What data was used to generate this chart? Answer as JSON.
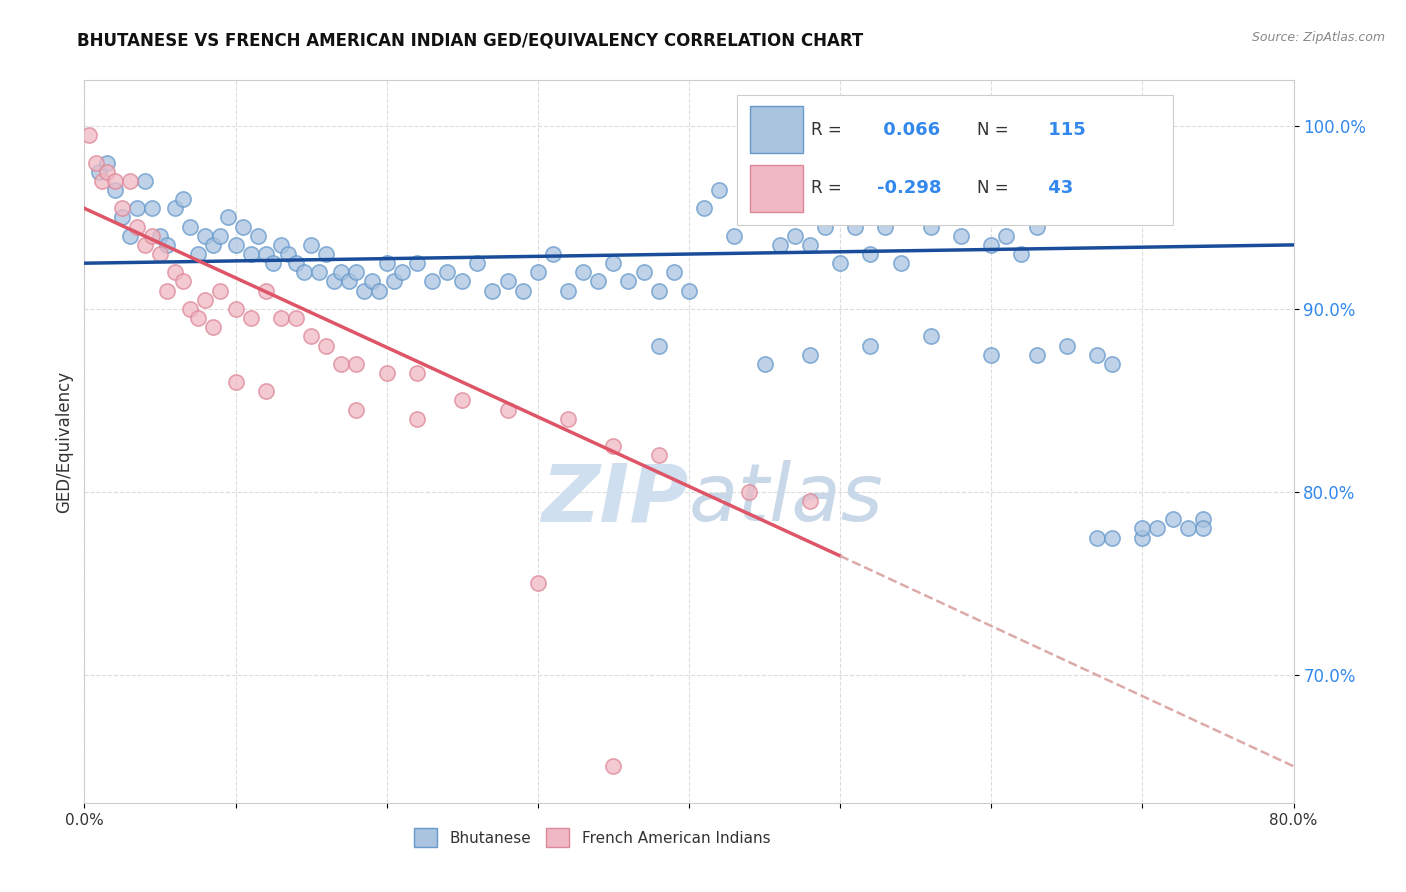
{
  "title": "BHUTANESE VS FRENCH AMERICAN INDIAN GED/EQUIVALENCY CORRELATION CHART",
  "source": "Source: ZipAtlas.com",
  "ylabel": "GED/Equivalency",
  "xlim": [
    0.0,
    80.0
  ],
  "ylim": [
    63.0,
    102.5
  ],
  "yticks": [
    70.0,
    80.0,
    90.0,
    100.0
  ],
  "ytick_labels": [
    "70.0%",
    "80.0%",
    "90.0%",
    "100.0%"
  ],
  "xticks": [
    0.0,
    10.0,
    20.0,
    30.0,
    40.0,
    50.0,
    60.0,
    70.0,
    80.0
  ],
  "xtick_labels": [
    "0.0%",
    "",
    "",
    "",
    "",
    "",
    "",
    "",
    "80.0%"
  ],
  "blue_R": 0.066,
  "blue_N": 115,
  "pink_R": -0.298,
  "pink_N": 43,
  "blue_color": "#aac4e0",
  "blue_edge_color": "#6699cc",
  "pink_color": "#f0b8c4",
  "pink_edge_color": "#dd8898",
  "blue_line_color": "#1a4d99",
  "pink_line_color": "#dd5566",
  "pink_dashed_color": "#ddaaaa",
  "legend_color": "#3388ee",
  "watermark_color": "#d0dff0",
  "blue_scatter_x": [
    1.0,
    1.5,
    2.0,
    2.5,
    3.0,
    3.5,
    4.0,
    4.5,
    5.0,
    5.5,
    6.0,
    6.5,
    7.0,
    7.5,
    8.0,
    8.5,
    9.0,
    9.5,
    10.0,
    10.5,
    11.0,
    11.5,
    12.0,
    12.5,
    13.0,
    13.5,
    14.0,
    14.5,
    15.0,
    15.5,
    16.0,
    16.5,
    17.0,
    17.5,
    18.0,
    18.5,
    19.0,
    19.5,
    20.0,
    20.5,
    21.0,
    22.0,
    23.0,
    24.0,
    25.0,
    26.0,
    27.0,
    28.0,
    29.0,
    30.0,
    31.0,
    32.0,
    33.0,
    34.0,
    35.0,
    36.0,
    37.0,
    38.0,
    39.0,
    40.0,
    41.0,
    42.0,
    43.0,
    44.0,
    45.0,
    46.0,
    47.0,
    48.0,
    49.0,
    50.0,
    51.0,
    52.0,
    53.0,
    54.0,
    55.0,
    56.0,
    57.0,
    58.0,
    59.0,
    60.0,
    61.0,
    62.0,
    63.0,
    64.0,
    65.0,
    66.0,
    67.0,
    68.0,
    70.0,
    71.0,
    73.0,
    74.0,
    38.0,
    45.0,
    48.0,
    52.0,
    56.0,
    60.0,
    63.0,
    65.0,
    67.0,
    68.0,
    70.0,
    72.0,
    74.0
  ],
  "blue_scatter_y": [
    97.5,
    98.0,
    96.5,
    95.0,
    94.0,
    95.5,
    97.0,
    95.5,
    94.0,
    93.5,
    95.5,
    96.0,
    94.5,
    93.0,
    94.0,
    93.5,
    94.0,
    95.0,
    93.5,
    94.5,
    93.0,
    94.0,
    93.0,
    92.5,
    93.5,
    93.0,
    92.5,
    92.0,
    93.5,
    92.0,
    93.0,
    91.5,
    92.0,
    91.5,
    92.0,
    91.0,
    91.5,
    91.0,
    92.5,
    91.5,
    92.0,
    92.5,
    91.5,
    92.0,
    91.5,
    92.5,
    91.0,
    91.5,
    91.0,
    92.0,
    93.0,
    91.0,
    92.0,
    91.5,
    92.5,
    91.5,
    92.0,
    91.0,
    92.0,
    91.0,
    95.5,
    96.5,
    94.0,
    95.0,
    95.5,
    93.5,
    94.0,
    93.5,
    94.5,
    92.5,
    94.5,
    93.0,
    94.5,
    92.5,
    95.0,
    94.5,
    95.5,
    94.0,
    95.5,
    93.5,
    94.0,
    93.0,
    94.5,
    95.5,
    96.0,
    95.5,
    77.5,
    77.5,
    77.5,
    78.0,
    78.0,
    78.5,
    88.0,
    87.0,
    87.5,
    88.0,
    88.5,
    87.5,
    87.5,
    88.0,
    87.5,
    87.0,
    78.0,
    78.5,
    78.0
  ],
  "pink_scatter_x": [
    0.3,
    0.8,
    1.2,
    1.5,
    2.0,
    2.5,
    3.0,
    3.5,
    4.0,
    4.5,
    5.0,
    5.5,
    6.0,
    6.5,
    7.0,
    7.5,
    8.0,
    8.5,
    9.0,
    10.0,
    11.0,
    12.0,
    13.0,
    14.0,
    15.0,
    16.0,
    17.0,
    18.0,
    20.0,
    22.0,
    25.0,
    28.0,
    32.0,
    35.0,
    38.0,
    44.0,
    48.0,
    10.0,
    12.0,
    18.0,
    22.0,
    30.0,
    35.0
  ],
  "pink_scatter_y": [
    99.5,
    98.0,
    97.0,
    97.5,
    97.0,
    95.5,
    97.0,
    94.5,
    93.5,
    94.0,
    93.0,
    91.0,
    92.0,
    91.5,
    90.0,
    89.5,
    90.5,
    89.0,
    91.0,
    90.0,
    89.5,
    91.0,
    89.5,
    89.5,
    88.5,
    88.0,
    87.0,
    87.0,
    86.5,
    86.5,
    85.0,
    84.5,
    84.0,
    82.5,
    82.0,
    80.0,
    79.5,
    86.0,
    85.5,
    84.5,
    84.0,
    75.0,
    65.0
  ],
  "blue_line_x0": 0.0,
  "blue_line_x1": 80.0,
  "blue_line_y0": 92.5,
  "blue_line_y1": 93.5,
  "pink_solid_x0": 0.0,
  "pink_solid_x1": 50.0,
  "pink_solid_y0": 95.5,
  "pink_solid_y1": 76.5,
  "pink_dashed_x0": 50.0,
  "pink_dashed_x1": 80.0,
  "pink_dashed_y0": 76.5,
  "pink_dashed_y1": 65.0,
  "marker_size": 120,
  "marker_linewidth": 1.2,
  "marker_alpha": 0.75
}
